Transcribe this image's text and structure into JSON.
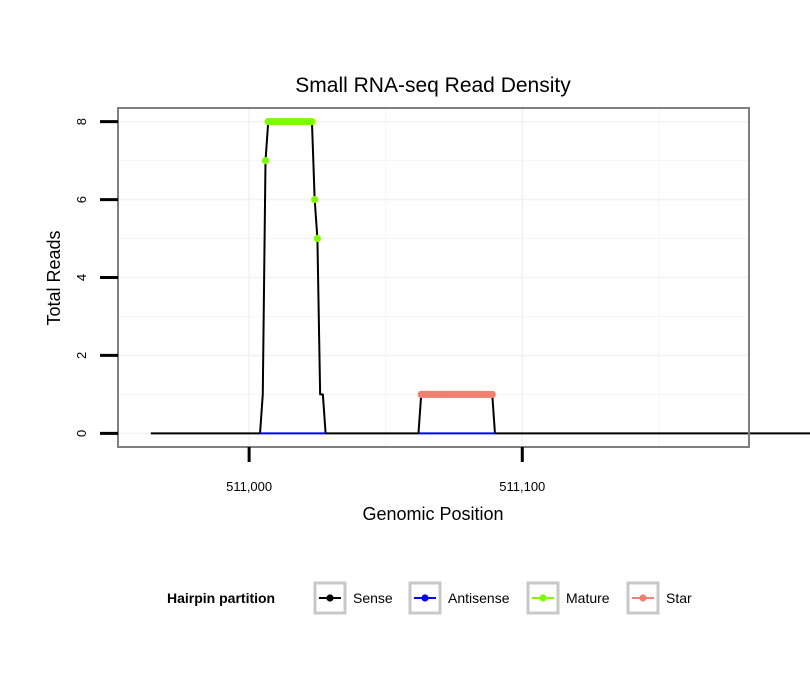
{
  "chart_data": {
    "type": "line",
    "title": "Small RNA-seq Read Density",
    "xlabel": "Genomic Position",
    "ylabel": "Total Reads",
    "xlim": [
      510952,
      511183
    ],
    "ylim": [
      -0.35,
      8.35
    ],
    "x_ticks": [
      511000,
      511100
    ],
    "x_tick_labels": [
      "511,000",
      "511,100"
    ],
    "y_ticks": [
      0,
      2,
      4,
      6,
      8
    ],
    "y_tick_labels": [
      "0",
      "2",
      "4",
      "6",
      "8"
    ],
    "legend": {
      "title": "Hairpin partition",
      "position": "bottom",
      "entries": [
        "Sense",
        "Antisense",
        "Mature",
        "Star"
      ]
    },
    "series": [
      {
        "name": "Sense",
        "color": "#000000",
        "style": "line",
        "x": [
          510964,
          511004,
          511005,
          511006,
          511007,
          511023,
          511024,
          511025,
          511026,
          511027,
          511028,
          511062,
          511063,
          511089,
          511090,
          511212
        ],
        "y": [
          0,
          0,
          1,
          7,
          8,
          8,
          6,
          5,
          1,
          1,
          0,
          0,
          1,
          1,
          0,
          0
        ]
      },
      {
        "name": "Antisense",
        "color": "#0000ff",
        "style": "line",
        "x": [
          511004,
          511028,
          511062,
          511090
        ],
        "y": [
          0,
          0,
          0,
          0
        ],
        "segments": [
          [
            0,
            1
          ],
          [
            2,
            3
          ]
        ]
      },
      {
        "name": "Mature",
        "color": "#7cfc00",
        "style": "points",
        "x": [
          511006,
          511007,
          511008,
          511009,
          511010,
          511011,
          511012,
          511013,
          511014,
          511015,
          511016,
          511017,
          511018,
          511019,
          511020,
          511021,
          511022,
          511023,
          511024,
          511025
        ],
        "y": [
          7,
          8,
          8,
          8,
          8,
          8,
          8,
          8,
          8,
          8,
          8,
          8,
          8,
          8,
          8,
          8,
          8,
          8,
          6,
          5
        ]
      },
      {
        "name": "Star",
        "color": "#f08070",
        "style": "points",
        "x": [
          511063,
          511064,
          511065,
          511066,
          511067,
          511068,
          511069,
          511070,
          511071,
          511072,
          511073,
          511074,
          511075,
          511076,
          511077,
          511078,
          511079,
          511080,
          511081,
          511082,
          511083,
          511084,
          511085,
          511086,
          511087,
          511088,
          511089
        ],
        "y": [
          1,
          1,
          1,
          1,
          1,
          1,
          1,
          1,
          1,
          1,
          1,
          1,
          1,
          1,
          1,
          1,
          1,
          1,
          1,
          1,
          1,
          1,
          1,
          1,
          1,
          1,
          1
        ]
      }
    ],
    "grid": true
  }
}
